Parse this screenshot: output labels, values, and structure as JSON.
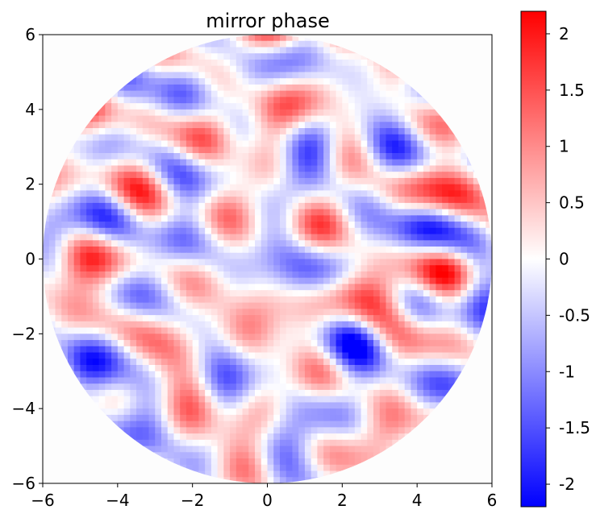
{
  "chart_data": {
    "type": "heatmap",
    "title": "mirror phase",
    "xlabel": "",
    "ylabel": "",
    "xlim": [
      -6,
      6
    ],
    "ylim": [
      -6,
      6
    ],
    "x_ticks": [
      "−6",
      "−4",
      "−2",
      "0",
      "2",
      "4",
      "6"
    ],
    "x_tick_values": [
      -6,
      -4,
      -2,
      0,
      2,
      4,
      6
    ],
    "y_ticks": [
      "−6",
      "−4",
      "−2",
      "0",
      "2",
      "4",
      "6"
    ],
    "y_tick_values": [
      -6,
      -4,
      -2,
      0,
      2,
      4,
      6
    ],
    "aperture_radius": 6,
    "colormap": "bwr",
    "colormap_colors": [
      "#0000ff",
      "#ffffff",
      "#ff0000"
    ],
    "colorbar": {
      "range": [
        -2.2,
        2.2
      ],
      "ticks": [
        "2",
        "1.5",
        "1",
        "0.5",
        "0",
        "-0.5",
        "-1",
        "-1.5",
        "-2"
      ],
      "tick_values": [
        2,
        1.5,
        1,
        0.5,
        0,
        -0.5,
        -1,
        -1.5,
        -2
      ]
    },
    "grid": false,
    "legend": "none"
  }
}
